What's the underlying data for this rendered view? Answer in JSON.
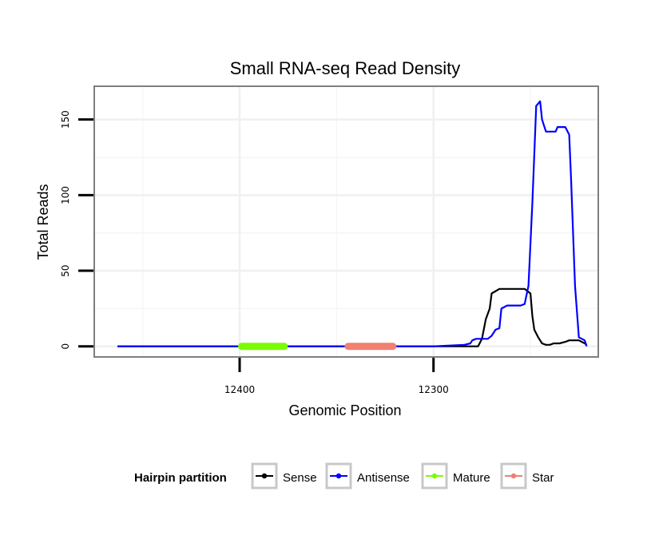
{
  "chart_data": {
    "type": "line",
    "title": "Small RNA-seq Read Density",
    "xlabel": "Genomic Position",
    "ylabel": "Total Reads",
    "x_reversed": true,
    "xlim": [
      12475,
      12215
    ],
    "ylim": [
      -7,
      172
    ],
    "x_ticks": [
      12400,
      12300
    ],
    "x_tick_labels": [
      "12400",
      "12300"
    ],
    "y_ticks": [
      0,
      50,
      100,
      150
    ],
    "y_tick_labels": [
      "0",
      "50",
      "100",
      "150"
    ],
    "grid": true,
    "legend": {
      "title": "Hairpin partition",
      "position": "bottom",
      "entries": [
        {
          "name": "Sense",
          "color": "#000000"
        },
        {
          "name": "Antisense",
          "color": "#0000ff"
        },
        {
          "name": "Mature",
          "color": "#7cfc00"
        },
        {
          "name": "Star",
          "color": "#f08070"
        }
      ]
    },
    "series": [
      {
        "name": "Sense",
        "color": "#000000",
        "x": [
          12463,
          12300,
          12281,
          12277,
          12275,
          12273,
          12271,
          12270,
          12266,
          12264,
          12260,
          12256,
          12253,
          12250,
          12249,
          12248,
          12246,
          12244,
          12242,
          12240,
          12238,
          12235,
          12232,
          12230,
          12228,
          12225,
          12222,
          12221
        ],
        "y": [
          0,
          0,
          0,
          0,
          5,
          18,
          25,
          35,
          38,
          38,
          38,
          38,
          38,
          35,
          20,
          11,
          6,
          2,
          1,
          1,
          2,
          2,
          3,
          4,
          4,
          4,
          2,
          1
        ]
      },
      {
        "name": "Antisense",
        "color": "#0000ff",
        "x": [
          12463,
          12300,
          12284,
          12281,
          12280,
          12278,
          12272,
          12270,
          12268,
          12266,
          12265,
          12262,
          12259,
          12255,
          12253,
          12251,
          12249,
          12247,
          12245,
          12244,
          12242,
          12241,
          12239,
          12237,
          12236,
          12234,
          12232,
          12230,
          12229,
          12227,
          12225,
          12222,
          12221
        ],
        "y": [
          0,
          0,
          1,
          2,
          4,
          5,
          5,
          7,
          11,
          12,
          25,
          27,
          27,
          27,
          28,
          40,
          95,
          159,
          162,
          150,
          142,
          142,
          142,
          142,
          145,
          145,
          145,
          140,
          110,
          40,
          6,
          4,
          0
        ]
      },
      {
        "name": "Mature",
        "color": "#7cfc00",
        "segment": [
          12399,
          12377
        ],
        "y": 0
      },
      {
        "name": "Star",
        "color": "#f08070",
        "segment": [
          12344,
          12321
        ],
        "y": 0
      }
    ]
  }
}
